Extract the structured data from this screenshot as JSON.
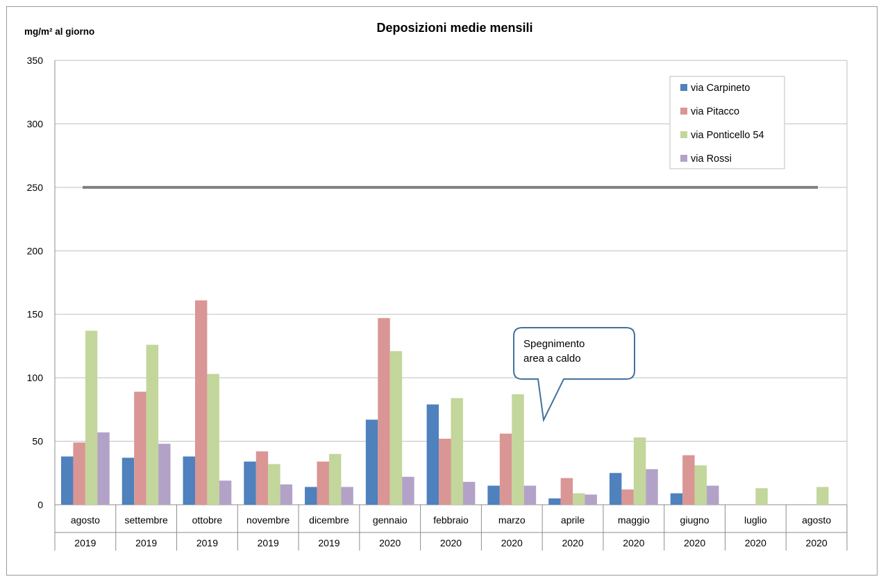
{
  "chart_data": {
    "type": "bar",
    "title": "Deposizioni medie mensili",
    "ylabel": "mg/m² al giorno",
    "ylim": [
      0,
      350
    ],
    "yticks": [
      0,
      50,
      100,
      150,
      200,
      250,
      300,
      350
    ],
    "grid": true,
    "legend_position": "top-right",
    "categories": [
      {
        "month": "agosto",
        "year": "2019"
      },
      {
        "month": "settembre",
        "year": "2019"
      },
      {
        "month": "ottobre",
        "year": "2019"
      },
      {
        "month": "novembre",
        "year": "2019"
      },
      {
        "month": "dicembre",
        "year": "2019"
      },
      {
        "month": "gennaio",
        "year": "2020"
      },
      {
        "month": "febbraio",
        "year": "2020"
      },
      {
        "month": "marzo",
        "year": "2020"
      },
      {
        "month": "aprile",
        "year": "2020"
      },
      {
        "month": "maggio",
        "year": "2020"
      },
      {
        "month": "giugno",
        "year": "2020"
      },
      {
        "month": "luglio",
        "year": "2020"
      },
      {
        "month": "agosto",
        "year": "2020"
      }
    ],
    "series": [
      {
        "name": "via Carpineto",
        "color": "#4f81bd",
        "values": [
          38,
          37,
          38,
          34,
          14,
          67,
          79,
          15,
          5,
          25,
          9,
          null,
          null
        ]
      },
      {
        "name": "via Pitacco",
        "color": "#d99694",
        "values": [
          49,
          89,
          161,
          42,
          34,
          147,
          52,
          56,
          21,
          12,
          39,
          null,
          null
        ]
      },
      {
        "name": "via Ponticello 54",
        "color": "#c3d69b",
        "values": [
          137,
          126,
          103,
          32,
          40,
          121,
          84,
          87,
          9,
          53,
          31,
          13,
          14
        ]
      },
      {
        "name": "via Rossi",
        "color": "#b3a2c7",
        "values": [
          57,
          48,
          19,
          16,
          14,
          22,
          18,
          15,
          8,
          28,
          15,
          null,
          null
        ]
      }
    ],
    "reference_line": {
      "value": 250,
      "color": "#7f7f7f"
    },
    "annotation": {
      "lines": [
        "Spegnimento",
        "area a caldo"
      ],
      "category_index": 8
    }
  }
}
